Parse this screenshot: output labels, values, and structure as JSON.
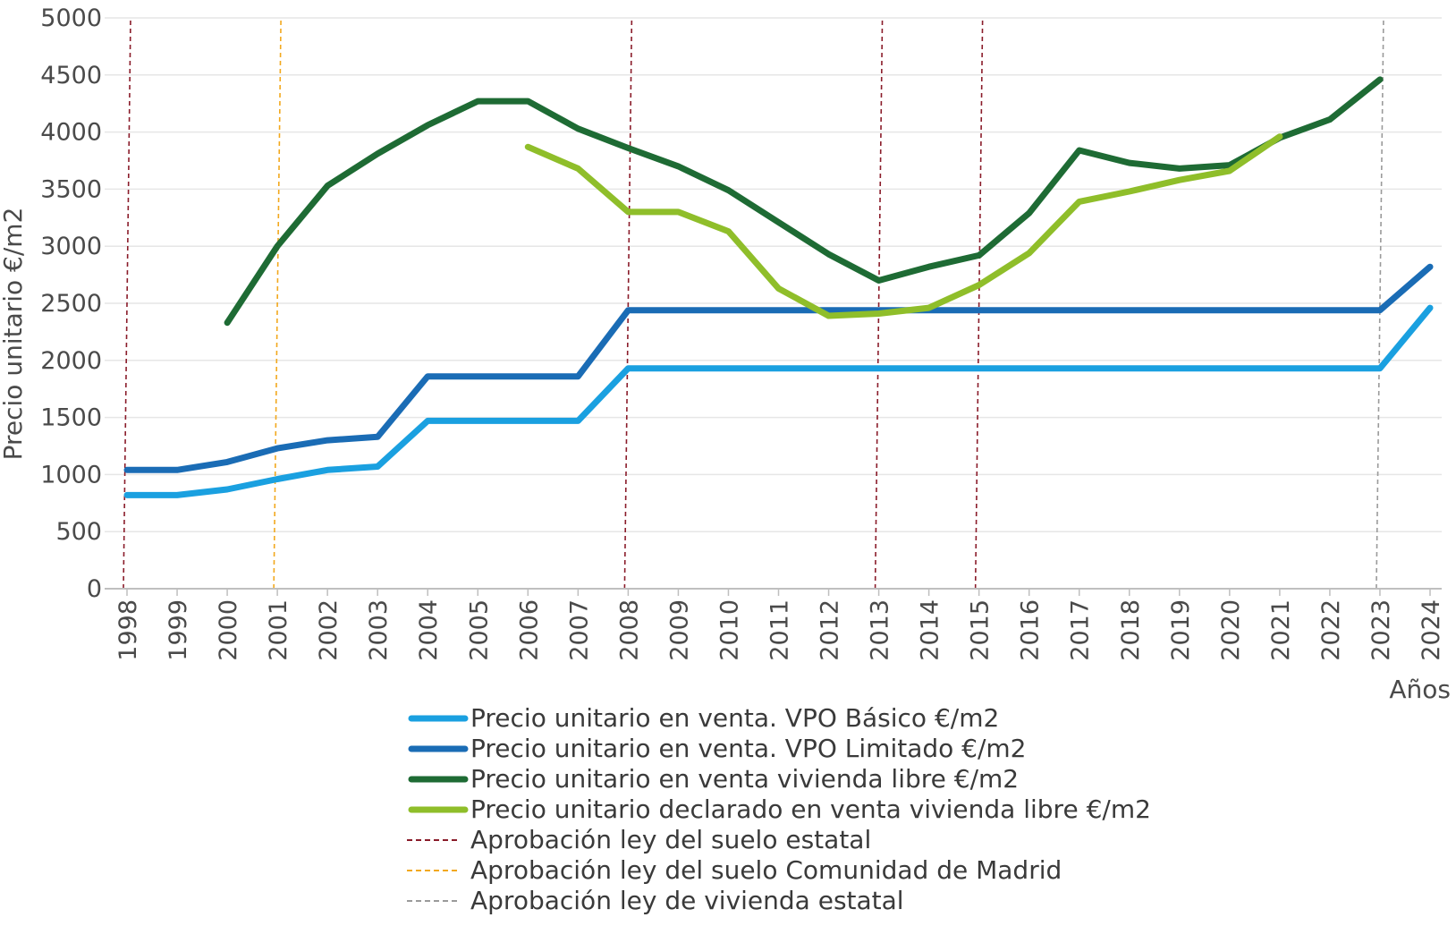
{
  "chart_data": {
    "type": "line",
    "title": "",
    "xlabel": "Años",
    "ylabel": "Precio unitario  €/m2",
    "ylim": [
      0,
      5000
    ],
    "yticks": [
      0,
      500,
      1000,
      1500,
      2000,
      2500,
      3000,
      3500,
      4000,
      4500,
      5000
    ],
    "grid": true,
    "legend_position": "bottom",
    "categories": [
      "1998",
      "1999",
      "2000",
      "2001",
      "2002",
      "2003",
      "2004",
      "2005",
      "2006",
      "2007",
      "2008",
      "2009",
      "2010",
      "2011",
      "2012",
      "2013",
      "2014",
      "2015",
      "2016",
      "2017",
      "2018",
      "2019",
      "2020",
      "2021",
      "2022",
      "2023",
      "2024"
    ],
    "series": [
      {
        "name": "Precio unitario en venta. VPO Básico  €/m2",
        "color": "#1aa0e0",
        "values": [
          820,
          820,
          870,
          960,
          1040,
          1070,
          1470,
          1470,
          1470,
          1470,
          1930,
          1930,
          1930,
          1930,
          1930,
          1930,
          1930,
          1930,
          1930,
          1930,
          1930,
          1930,
          1930,
          1930,
          1930,
          1930,
          2460
        ]
      },
      {
        "name": "Precio unitario en venta. VPO Limitado  €/m2",
        "color": "#1a6cb5",
        "values": [
          1040,
          1040,
          1110,
          1230,
          1300,
          1330,
          1860,
          1860,
          1860,
          1860,
          2440,
          2440,
          2440,
          2440,
          2440,
          2440,
          2440,
          2440,
          2440,
          2440,
          2440,
          2440,
          2440,
          2440,
          2440,
          2440,
          2820
        ]
      },
      {
        "name": "Precio unitario en venta vivienda libre  €/m2",
        "color": "#1e6b34",
        "values": [
          null,
          null,
          2330,
          3000,
          3530,
          3810,
          4060,
          4270,
          4270,
          4030,
          3860,
          3700,
          3490,
          3210,
          2930,
          2700,
          2820,
          2920,
          3290,
          3840,
          3730,
          3680,
          3710,
          3950,
          4110,
          4460,
          null
        ]
      },
      {
        "name": "Precio unitario declarado en venta vivienda libre €/m2",
        "color": "#8fbe2a",
        "values": [
          null,
          null,
          null,
          null,
          null,
          null,
          null,
          null,
          3870,
          3680,
          3300,
          3300,
          3130,
          2630,
          2390,
          2410,
          2460,
          2660,
          2940,
          3390,
          3480,
          3580,
          3660,
          3960,
          null,
          null,
          null
        ]
      }
    ],
    "vertical_markers": [
      {
        "name": "Aprobación  ley del suelo estatal",
        "color": "#8a1c2a",
        "years": [
          "1998",
          "2008",
          "2013",
          "2015"
        ]
      },
      {
        "name": "Aprobación ley del suelo Comunidad de Madrid",
        "color": "#f2a81d",
        "years": [
          "2001"
        ]
      },
      {
        "name": "Aprobación ley de vivienda estatal",
        "color": "#9a9a9a",
        "years": [
          "2023"
        ]
      }
    ]
  }
}
